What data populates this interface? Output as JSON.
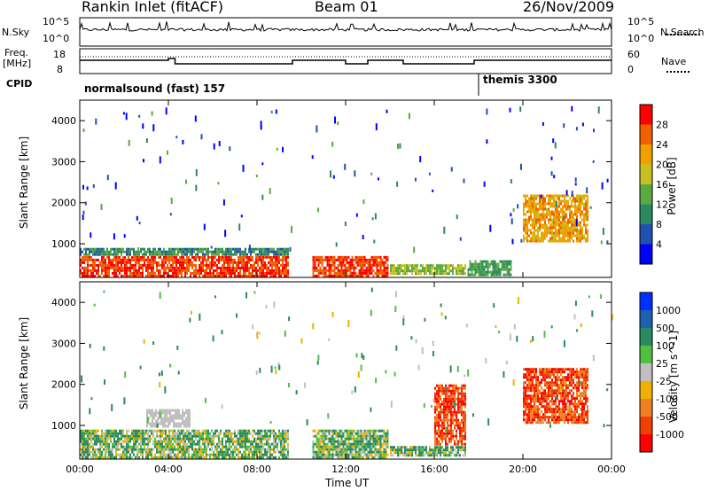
{
  "header": {
    "station": "Rankin Inlet (fitACF)",
    "beam": "Beam 01",
    "date": "26/Nov/2009"
  },
  "nsky_panel": {
    "left_label": "N.Sky",
    "right_label": "N.Search",
    "ticks_left": [
      "10^5",
      "10^0"
    ],
    "ticks_right": [
      "10^5",
      "10^0"
    ]
  },
  "freq_panel": {
    "left_label_1": "Freq.",
    "left_label_2": "[MHz]",
    "right_label": "Nave",
    "ticks_left": [
      "18",
      "8"
    ],
    "ticks_right": [
      "60",
      "0"
    ]
  },
  "cpid_panel": {
    "label": "CPID",
    "program_1": "normalsound (fast) 157",
    "program_2": "themis 3300",
    "switch_hour": 18
  },
  "axes": {
    "ylabel": "Slant Range [km]",
    "xlabel": "Time UT",
    "x_ticks": [
      "00:00",
      "04:00",
      "08:00",
      "12:00",
      "16:00",
      "20:00",
      "00:00"
    ],
    "y_ticks": [
      "1000",
      "2000",
      "3000",
      "4000"
    ]
  },
  "colors": {
    "power": [
      "#0000ff",
      "#2050b0",
      "#2a8a60",
      "#5aaa40",
      "#c8c020",
      "#f0a000",
      "#f06000",
      "#ff0000"
    ],
    "velocity": [
      "#0030ff",
      "#2060b0",
      "#2a8a60",
      "#50c040",
      "#c0c0c0",
      "#f0b000",
      "#f08020",
      "#f04000",
      "#ff0000"
    ]
  },
  "chart_data": [
    {
      "type": "heatmap",
      "title": "",
      "xlabel": "Time UT",
      "ylabel": "Slant Range [km]",
      "xlim": [
        0,
        24
      ],
      "ylim": [
        180,
        4500
      ],
      "colorbar": {
        "label": "Power [dB]",
        "ticks": [
          "4",
          "8",
          "12",
          "16",
          "20",
          "24",
          "28"
        ],
        "range": [
          0,
          32
        ]
      },
      "regions": [
        {
          "t0": 0,
          "t1": 9.5,
          "r0": 180,
          "r1": 700,
          "value": 28
        },
        {
          "t0": 0,
          "t1": 9.5,
          "r0": 700,
          "r1": 900,
          "value": 10
        },
        {
          "t0": 10.5,
          "t1": 14,
          "r0": 180,
          "r1": 700,
          "value": 28
        },
        {
          "t0": 14,
          "t1": 17.5,
          "r0": 180,
          "r1": 500,
          "value": 16
        },
        {
          "t0": 17.5,
          "t1": 19.5,
          "r0": 180,
          "r1": 600,
          "value": 12
        },
        {
          "t0": 20,
          "t1": 23,
          "r0": 1000,
          "r1": 2200,
          "value": 22
        }
      ]
    },
    {
      "type": "heatmap",
      "title": "",
      "xlabel": "Time UT",
      "ylabel": "Slant Range [km]",
      "xlim": [
        0,
        24
      ],
      "ylim": [
        180,
        4500
      ],
      "colorbar": {
        "label": "Velocity [m s^-1]",
        "ticks": [
          "1000",
          "500",
          "100",
          "25",
          "-25",
          "-100",
          "-500",
          "-1000"
        ]
      },
      "regions": [
        {
          "t0": 0,
          "t1": 9.5,
          "r0": 180,
          "r1": 900,
          "value": 50
        },
        {
          "t0": 3,
          "t1": 5,
          "r0": 900,
          "r1": 1400,
          "value": 0
        },
        {
          "t0": 10.5,
          "t1": 14,
          "r0": 180,
          "r1": 900,
          "value": 50
        },
        {
          "t0": 14,
          "t1": 17.5,
          "r0": 180,
          "r1": 500,
          "value": 20
        },
        {
          "t0": 16,
          "t1": 17.5,
          "r0": 500,
          "r1": 2000,
          "value": -300
        },
        {
          "t0": 20,
          "t1": 23,
          "r0": 1000,
          "r1": 2400,
          "value": -200
        }
      ]
    }
  ]
}
